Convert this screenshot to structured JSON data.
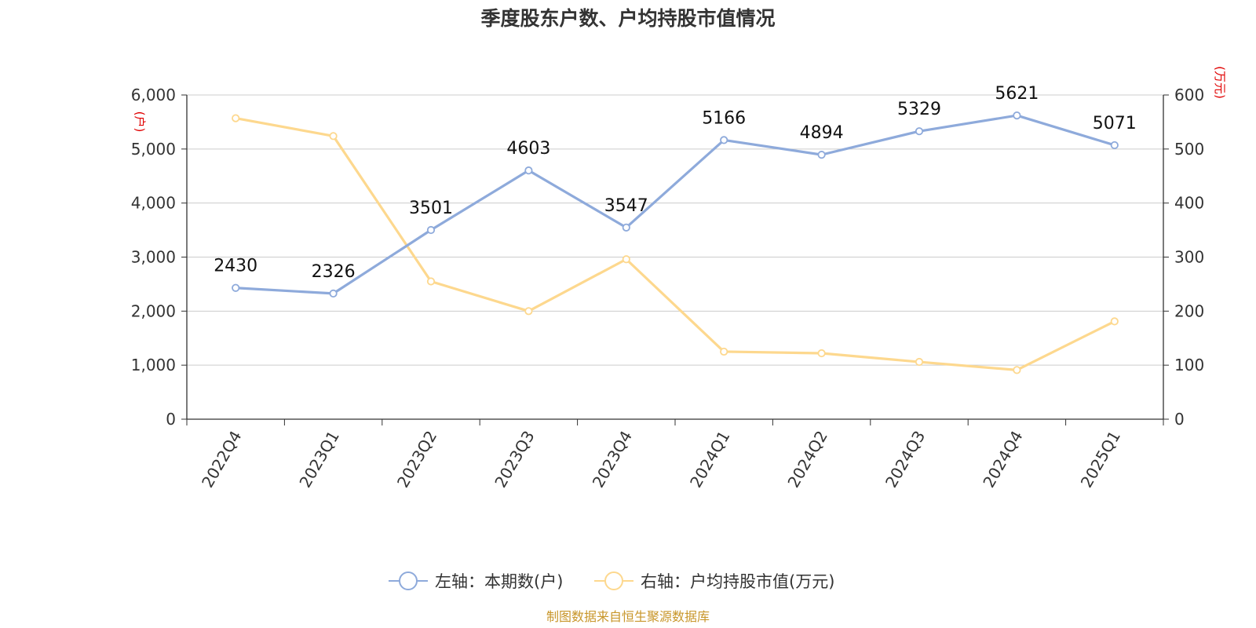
{
  "chart_data": {
    "type": "line",
    "title": "季度股东户数、户均持股市值情况",
    "categories": [
      "2022Q4",
      "2023Q1",
      "2023Q2",
      "2023Q3",
      "2023Q4",
      "2024Q1",
      "2024Q2",
      "2024Q3",
      "2024Q4",
      "2025Q1"
    ],
    "y_left": {
      "unit": "(户)",
      "ylim": [
        0,
        6000
      ],
      "ticks": [
        "0",
        "1,000",
        "2,000",
        "3,000",
        "4,000",
        "5,000",
        "6,000"
      ]
    },
    "y_right": {
      "unit": "(万元)",
      "ylim": [
        0,
        600
      ],
      "ticks": [
        "0",
        "100",
        "200",
        "300",
        "400",
        "500",
        "600"
      ]
    },
    "series": [
      {
        "name": "左轴：本期数(户)",
        "axis": "left",
        "color": "#8eaadb",
        "values": [
          2430,
          2326,
          3501,
          4603,
          3547,
          5166,
          4894,
          5329,
          5621,
          5071
        ],
        "labels": [
          "2430",
          "2326",
          "3501",
          "4603",
          "3547",
          "5166",
          "4894",
          "5329",
          "5621",
          "5071"
        ]
      },
      {
        "name": "右轴：户均持股市值(万元)",
        "axis": "right",
        "color": "#fdd88e",
        "values": [
          557,
          524,
          255,
          200,
          296,
          125,
          122,
          106,
          91,
          181
        ]
      }
    ],
    "grid": true,
    "legend_position": "bottom-center",
    "source": "制图数据来自恒生聚源数据库"
  }
}
